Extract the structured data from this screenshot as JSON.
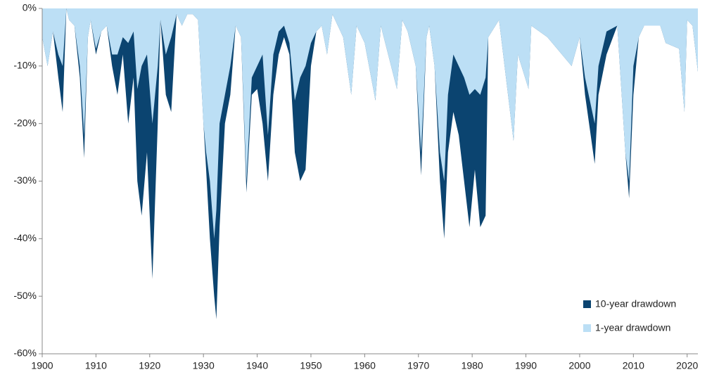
{
  "chart_data": {
    "type": "area",
    "legend": "lower right",
    "x": [
      1900,
      1901,
      1902,
      1903,
      1903.8,
      1904.5,
      1905,
      1906,
      1907,
      1907.8,
      1908.5,
      1909,
      1910,
      1911,
      1912,
      1913,
      1914,
      1915,
      1916,
      1917,
      1917.7,
      1918.5,
      1919.5,
      1920.5,
      1921.5,
      1922,
      1923,
      1924,
      1925,
      1926,
      1927,
      1928,
      1929,
      1930,
      1930.5,
      1931.2,
      1932,
      1932.4,
      1933,
      1934,
      1935,
      1936,
      1937,
      1938,
      1939,
      1940,
      1941,
      1942,
      1943,
      1944,
      1945,
      1946,
      1947,
      1948,
      1949,
      1950,
      1951,
      1952,
      1953,
      1954,
      1956,
      1957.5,
      1958.5,
      1960,
      1962,
      1963,
      1966,
      1967,
      1968,
      1969.5,
      1970.5,
      1971.5,
      1972,
      1973,
      1974,
      1974.8,
      1975.5,
      1976.5,
      1977.5,
      1978.5,
      1979.5,
      1980.5,
      1981.5,
      1982.5,
      1983,
      1985,
      1987.7,
      1988.5,
      1990.5,
      1991,
      1994,
      1998.5,
      2000,
      2001,
      2002.8,
      2003.5,
      2005,
      2007,
      2008.5,
      2009.2,
      2010,
      2011,
      2012,
      2015,
      2016,
      2018.5,
      2019.5,
      2020,
      2021,
      2022
    ],
    "series": [
      {
        "name": "10-year drawdown",
        "color": "#0b4470",
        "values": [
          -5,
          -10,
          -4,
          -12,
          -18,
          0,
          -2,
          -3,
          -12,
          -26,
          -5,
          -2,
          -8,
          -4,
          -3,
          -10,
          -15,
          -8,
          -20,
          -12,
          -30,
          -36,
          -25,
          -47,
          -20,
          -2,
          -15,
          -18,
          -1,
          -3,
          -1,
          -1,
          -2,
          -20,
          -28,
          -40,
          -50,
          -54,
          -38,
          -20,
          -15,
          -3,
          -5,
          -32,
          -15,
          -14,
          -20,
          -30,
          -15,
          -8,
          -5,
          -8,
          -25,
          -30,
          -28,
          -10,
          -4,
          -3,
          -8,
          -1,
          -5,
          -15,
          -3,
          -6,
          -16,
          -3,
          -14,
          -2,
          -4,
          -10,
          -29,
          -5,
          -3,
          -10,
          -30,
          -40,
          -25,
          -18,
          -22,
          -30,
          -38,
          -28,
          -38,
          -36,
          -5,
          -2,
          -23,
          -8,
          -14,
          -3,
          -5,
          -10,
          -5,
          -15,
          -27,
          -15,
          -8,
          -3,
          -25,
          -33,
          -15,
          -5,
          -3,
          -3,
          -6,
          -7,
          -18,
          -2,
          -3,
          -11
        ]
      },
      {
        "name": "1-year drawdown",
        "color": "#bcdff5",
        "values": [
          -5,
          -10,
          -4,
          -8,
          -10,
          0,
          -2,
          -3,
          -10,
          -22,
          -5,
          -2,
          -7,
          -4,
          -3,
          -8,
          -8,
          -5,
          -6,
          -4,
          -14,
          -10,
          -8,
          -20,
          -10,
          -2,
          -8,
          -5,
          -1,
          -3,
          -1,
          -1,
          -2,
          -20,
          -25,
          -30,
          -40,
          -35,
          -20,
          -15,
          -10,
          -3,
          -5,
          -30,
          -12,
          -10,
          -8,
          -22,
          -8,
          -4,
          -3,
          -6,
          -16,
          -12,
          -10,
          -6,
          -4,
          -3,
          -8,
          -1,
          -5,
          -15,
          -3,
          -6,
          -16,
          -3,
          -14,
          -2,
          -4,
          -10,
          -25,
          -5,
          -3,
          -10,
          -25,
          -30,
          -15,
          -8,
          -10,
          -12,
          -15,
          -14,
          -15,
          -12,
          -5,
          -2,
          -23,
          -8,
          -14,
          -3,
          -5,
          -10,
          -5,
          -12,
          -20,
          -10,
          -4,
          -3,
          -25,
          -30,
          -10,
          -5,
          -3,
          -3,
          -6,
          -7,
          -18,
          -2,
          -3,
          -11
        ]
      }
    ],
    "xlim": [
      1900,
      2022
    ],
    "xticks": [
      1900,
      1910,
      1920,
      1930,
      1940,
      1950,
      1960,
      1970,
      1980,
      1990,
      2000,
      2010,
      2020
    ],
    "ylim": [
      -60,
      0
    ],
    "yticks": [
      {
        "value": 0,
        "label": "0%"
      },
      {
        "value": -10,
        "label": "-10%"
      },
      {
        "value": -20,
        "label": "-20%"
      },
      {
        "value": -30,
        "label": "-30%"
      },
      {
        "value": -40,
        "label": "-40%"
      },
      {
        "value": -50,
        "label": "-50%"
      },
      {
        "value": -60,
        "label": "-60%"
      }
    ]
  }
}
